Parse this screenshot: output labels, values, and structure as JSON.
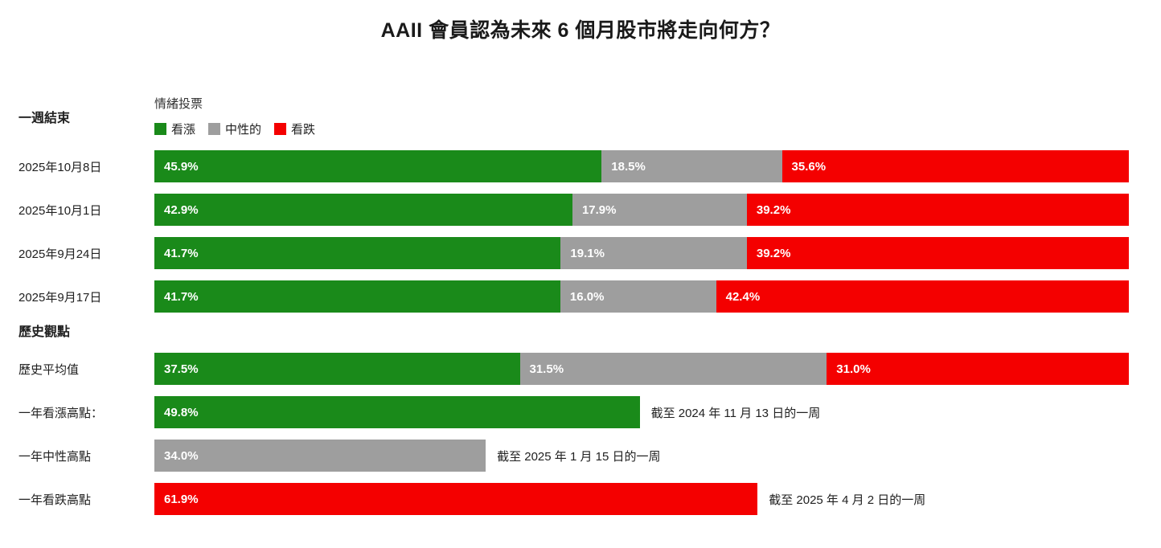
{
  "page": {
    "title": "AAII 會員認為未來 6 個月股市將走向何方？"
  },
  "chart_data": {
    "type": "bar",
    "orientation": "horizontal",
    "stacked": true,
    "value_suffix": "%",
    "xlim": [
      0,
      100
    ],
    "grid": false,
    "legend_position": "top-left",
    "legend_title": "情緒投票",
    "legend": [
      {
        "series": "bullish",
        "label": "看漲",
        "color": "#1a8a1a"
      },
      {
        "series": "neutral",
        "label": "中性的",
        "color": "#9e9e9e"
      },
      {
        "series": "bearish",
        "label": "看跌",
        "color": "#f40000"
      }
    ],
    "sections": [
      {
        "heading": "一週結束",
        "rows": [
          {
            "label": "2025年10月8日",
            "segments": [
              {
                "series": "bullish",
                "value": 45.9
              },
              {
                "series": "neutral",
                "value": 18.5
              },
              {
                "series": "bearish",
                "value": 35.6
              }
            ]
          },
          {
            "label": "2025年10月1日",
            "segments": [
              {
                "series": "bullish",
                "value": 42.9
              },
              {
                "series": "neutral",
                "value": 17.9
              },
              {
                "series": "bearish",
                "value": 39.2
              }
            ]
          },
          {
            "label": "2025年9月24日",
            "segments": [
              {
                "series": "bullish",
                "value": 41.7
              },
              {
                "series": "neutral",
                "value": 19.1
              },
              {
                "series": "bearish",
                "value": 39.2
              }
            ]
          },
          {
            "label": "2025年9月17日",
            "segments": [
              {
                "series": "bullish",
                "value": 41.7
              },
              {
                "series": "neutral",
                "value": 16.0
              },
              {
                "series": "bearish",
                "value": 42.4
              }
            ]
          }
        ]
      },
      {
        "heading": "歷史觀點",
        "rows": [
          {
            "label": "歷史平均值",
            "segments": [
              {
                "series": "bullish",
                "value": 37.5
              },
              {
                "series": "neutral",
                "value": 31.5
              },
              {
                "series": "bearish",
                "value": 31.0
              }
            ]
          },
          {
            "label": "一年看漲高點：",
            "segments": [
              {
                "series": "bullish",
                "value": 49.8
              }
            ],
            "annotation": "截至 2024 年 11 月 13 日的一周"
          },
          {
            "label": "一年中性高點",
            "segments": [
              {
                "series": "neutral",
                "value": 34.0
              }
            ],
            "annotation": "截至 2025 年 1 月 15 日的一周"
          },
          {
            "label": "一年看跌高點",
            "segments": [
              {
                "series": "bearish",
                "value": 61.9
              }
            ],
            "annotation": "截至 2025 年 4 月 2 日的一周"
          }
        ]
      }
    ]
  }
}
